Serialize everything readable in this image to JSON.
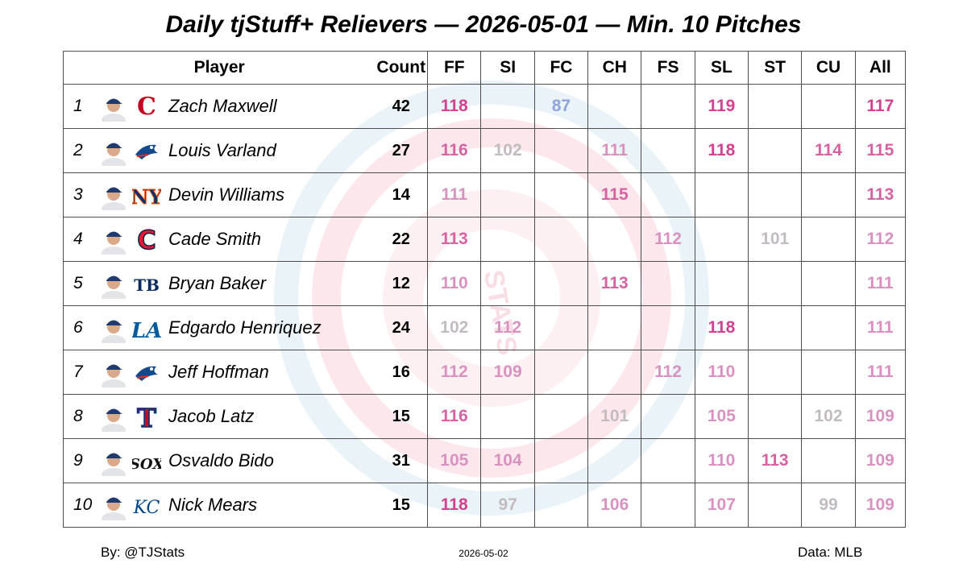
{
  "title": "Daily tjStuff+ Relievers — 2026-05-01 — Min. 10 Pitches",
  "watermark_text": "STATS",
  "colors": {
    "very_high": "#d1428f",
    "high": "#d563a2",
    "mid_high": "#d992bf",
    "neutral": "#c2bcc0",
    "low": "#8ea3da",
    "border": "#4d4d4d"
  },
  "footer": {
    "credit": "By: @TJStats",
    "date": "2026-05-02",
    "source": "Data: MLB"
  },
  "chart_data": {
    "type": "table",
    "columns": [
      "Player",
      "Count",
      "FF",
      "SI",
      "FC",
      "CH",
      "FS",
      "SL",
      "ST",
      "CU",
      "All"
    ],
    "pitch_columns": [
      "FF",
      "SI",
      "FC",
      "CH",
      "FS",
      "SL",
      "ST",
      "CU",
      "All"
    ],
    "rows": [
      {
        "rank": "1",
        "player": "Zach Maxwell",
        "team_logo": "reds-c-logo-icon",
        "count": "42",
        "FF": "118",
        "SI": "",
        "FC": "87",
        "CH": "",
        "FS": "",
        "SL": "119",
        "ST": "",
        "CU": "",
        "All": "117"
      },
      {
        "rank": "2",
        "player": "Louis Varland",
        "team_logo": "blue-jays-logo-icon",
        "count": "27",
        "FF": "116",
        "SI": "102",
        "FC": "",
        "CH": "111",
        "FS": "",
        "SL": "118",
        "ST": "",
        "CU": "114",
        "All": "115"
      },
      {
        "rank": "3",
        "player": "Devin Williams",
        "team_logo": "mets-ny-logo-icon",
        "count": "14",
        "FF": "111",
        "SI": "",
        "FC": "",
        "CH": "115",
        "FS": "",
        "SL": "",
        "ST": "",
        "CU": "",
        "All": "113"
      },
      {
        "rank": "4",
        "player": "Cade Smith",
        "team_logo": "guardians-c-logo-icon",
        "count": "22",
        "FF": "113",
        "SI": "",
        "FC": "",
        "CH": "",
        "FS": "112",
        "SL": "",
        "ST": "101",
        "CU": "",
        "All": "112"
      },
      {
        "rank": "5",
        "player": "Bryan Baker",
        "team_logo": "rays-tb-logo-icon",
        "count": "12",
        "FF": "110",
        "SI": "",
        "FC": "",
        "CH": "113",
        "FS": "",
        "SL": "",
        "ST": "",
        "CU": "",
        "All": "111"
      },
      {
        "rank": "6",
        "player": "Edgardo Henriquez",
        "team_logo": "dodgers-la-logo-icon",
        "count": "24",
        "FF": "102",
        "SI": "112",
        "FC": "",
        "CH": "",
        "FS": "",
        "SL": "118",
        "ST": "",
        "CU": "",
        "All": "111"
      },
      {
        "rank": "7",
        "player": "Jeff Hoffman",
        "team_logo": "blue-jays-logo-icon",
        "count": "16",
        "FF": "112",
        "SI": "109",
        "FC": "",
        "CH": "",
        "FS": "112",
        "SL": "110",
        "ST": "",
        "CU": "",
        "All": "111"
      },
      {
        "rank": "8",
        "player": "Jacob Latz",
        "team_logo": "rangers-t-logo-icon",
        "count": "15",
        "FF": "116",
        "SI": "",
        "FC": "",
        "CH": "101",
        "FS": "",
        "SL": "105",
        "ST": "",
        "CU": "102",
        "All": "109"
      },
      {
        "rank": "9",
        "player": "Osvaldo Bido",
        "team_logo": "white-sox-logo-icon",
        "count": "31",
        "FF": "105",
        "SI": "104",
        "FC": "",
        "CH": "",
        "FS": "",
        "SL": "110",
        "ST": "113",
        "CU": "",
        "All": "109"
      },
      {
        "rank": "10",
        "player": "Nick Mears",
        "team_logo": "royals-kc-logo-icon",
        "count": "15",
        "FF": "118",
        "SI": "97",
        "FC": "",
        "CH": "106",
        "FS": "",
        "SL": "107",
        "ST": "",
        "CU": "99",
        "All": "109"
      }
    ]
  }
}
